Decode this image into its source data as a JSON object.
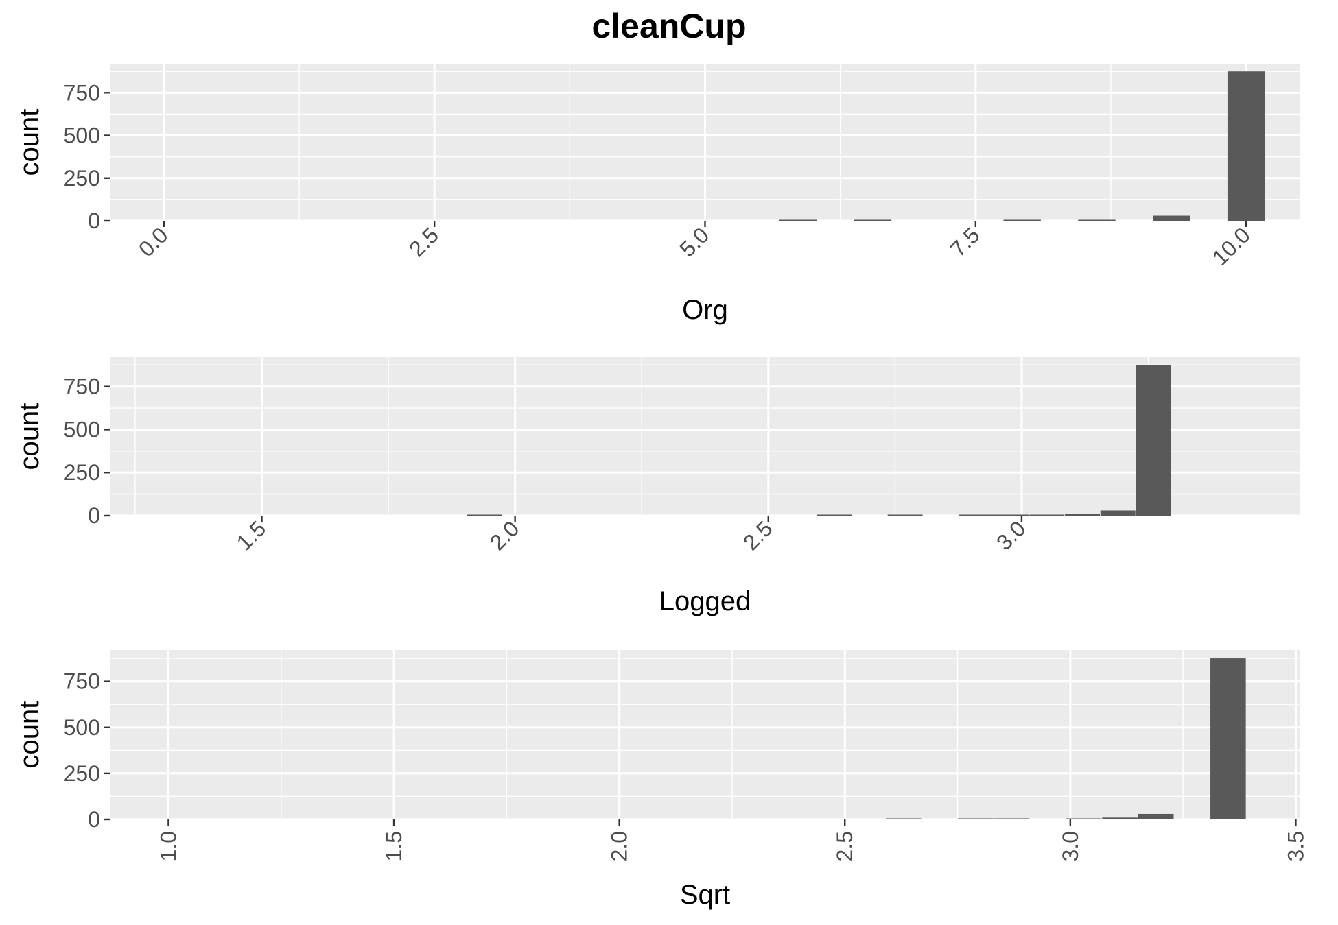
{
  "chart_data": {
    "title": "cleanCup",
    "panels": [
      {
        "type": "bar",
        "subtype": "histogram",
        "xlabel": "Org",
        "ylabel": "count",
        "xlim": [
          -0.5,
          10.5
        ],
        "ylim": [
          0,
          920
        ],
        "x_ticks": [
          0.0,
          2.5,
          5.0,
          7.5,
          10.0
        ],
        "x_tick_labels": [
          "0.0",
          "2.5",
          "5.0",
          "7.5",
          "10.0"
        ],
        "y_ticks": [
          0,
          250,
          500,
          750
        ],
        "y_tick_labels": [
          "0",
          "250",
          "500",
          "750"
        ],
        "tick_label_rotation": 45,
        "bin_width": 0.345,
        "bins": [
          {
            "x": 5.86,
            "count": 1
          },
          {
            "x": 6.55,
            "count": 1
          },
          {
            "x": 7.93,
            "count": 3
          },
          {
            "x": 8.62,
            "count": 3
          },
          {
            "x": 9.31,
            "count": 30
          },
          {
            "x": 10.0,
            "count": 875
          }
        ]
      },
      {
        "type": "bar",
        "subtype": "histogram",
        "xlabel": "Logged",
        "ylabel": "count",
        "xlim": [
          1.2,
          3.55
        ],
        "ylim": [
          0,
          920
        ],
        "x_ticks": [
          1.5,
          2.0,
          2.5,
          3.0
        ],
        "x_tick_labels": [
          "1.5",
          "2.0",
          "2.5",
          "3.0"
        ],
        "y_ticks": [
          0,
          250,
          500,
          750
        ],
        "y_tick_labels": [
          "0",
          "250",
          "500",
          "750"
        ],
        "tick_label_rotation": 45,
        "bin_width": 0.069,
        "bins": [
          {
            "x": 1.94,
            "count": 1
          },
          {
            "x": 2.63,
            "count": 1
          },
          {
            "x": 2.77,
            "count": 1
          },
          {
            "x": 2.91,
            "count": 3
          },
          {
            "x": 2.98,
            "count": 1
          },
          {
            "x": 3.05,
            "count": 3
          },
          {
            "x": 3.12,
            "count": 10
          },
          {
            "x": 3.19,
            "count": 30
          },
          {
            "x": 3.26,
            "count": 875
          }
        ]
      },
      {
        "type": "bar",
        "subtype": "histogram",
        "xlabel": "Sqrt",
        "ylabel": "count",
        "xlim": [
          0.87,
          3.51
        ],
        "ylim": [
          0,
          920
        ],
        "x_ticks": [
          1.0,
          1.5,
          2.0,
          2.5,
          3.0,
          3.5
        ],
        "x_tick_labels": [
          "1.0",
          "1.5",
          "2.0",
          "2.5",
          "3.0",
          "3.5"
        ],
        "y_ticks": [
          0,
          250,
          500,
          750
        ],
        "y_tick_labels": [
          "0",
          "250",
          "500",
          "750"
        ],
        "tick_label_rotation": 90,
        "bin_width": 0.0785,
        "bins": [
          {
            "x": 2.63,
            "count": 1
          },
          {
            "x": 2.79,
            "count": 3
          },
          {
            "x": 2.87,
            "count": 1
          },
          {
            "x": 3.03,
            "count": 3
          },
          {
            "x": 3.11,
            "count": 10
          },
          {
            "x": 3.19,
            "count": 30
          },
          {
            "x": 3.35,
            "count": 875
          }
        ]
      }
    ]
  }
}
